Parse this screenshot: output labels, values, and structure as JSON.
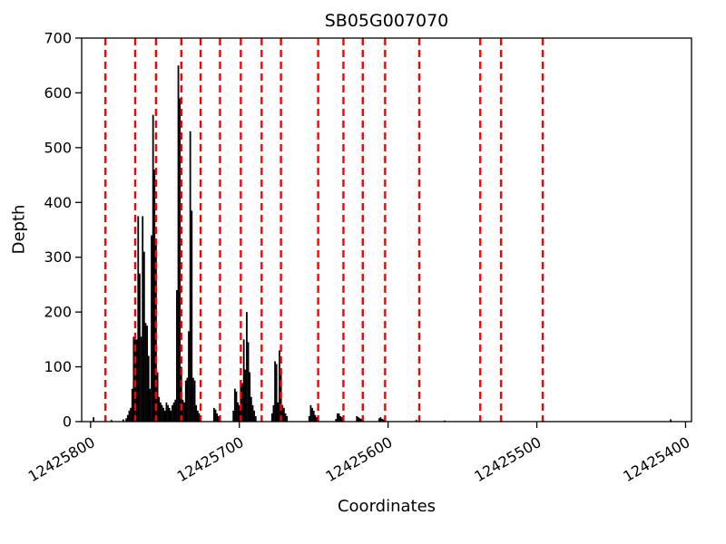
{
  "chart_data": {
    "type": "bar",
    "title": "SB05G007070",
    "xlabel": "Coordinates",
    "ylabel": "Depth",
    "ylim": [
      0,
      700
    ],
    "xlim": [
      12425806,
      12425396
    ],
    "x_axis_reversed": true,
    "grid": false,
    "y_ticks": [
      0,
      100,
      200,
      300,
      400,
      500,
      600,
      700
    ],
    "x_ticks": [
      12425800,
      12425700,
      12425600,
      12425500,
      12425400
    ],
    "x_tick_labels": [
      "12425800",
      "12425700",
      "12425600",
      "12425500",
      "12425400"
    ],
    "bar_color": "#000000",
    "vline_color": "#ff0000",
    "vline_style": "dashed",
    "vlines": [
      12425790,
      12425770,
      12425756,
      12425739,
      12425726,
      12425713,
      12425699,
      12425685,
      12425672,
      12425647,
      12425630,
      12425617,
      12425602,
      12425579,
      12425538,
      12425524,
      12425496
    ],
    "bars": [
      [
        12425798,
        8
      ],
      [
        12425786,
        3
      ],
      [
        12425778,
        4
      ],
      [
        12425776,
        6
      ],
      [
        12425775,
        12
      ],
      [
        12425774,
        20
      ],
      [
        12425773,
        25
      ],
      [
        12425772,
        60
      ],
      [
        12425771,
        155
      ],
      [
        12425770,
        160
      ],
      [
        12425769,
        150
      ],
      [
        12425768,
        375
      ],
      [
        12425767,
        270
      ],
      [
        12425766,
        155
      ],
      [
        12425765,
        375
      ],
      [
        12425764,
        310
      ],
      [
        12425763,
        180
      ],
      [
        12425762,
        175
      ],
      [
        12425761,
        120
      ],
      [
        12425760,
        60
      ],
      [
        12425759,
        340
      ],
      [
        12425758,
        560
      ],
      [
        12425757,
        460
      ],
      [
        12425756,
        330
      ],
      [
        12425755,
        90
      ],
      [
        12425754,
        45
      ],
      [
        12425753,
        35
      ],
      [
        12425752,
        30
      ],
      [
        12425751,
        25
      ],
      [
        12425750,
        20
      ],
      [
        12425749,
        35
      ],
      [
        12425748,
        30
      ],
      [
        12425747,
        25
      ],
      [
        12425746,
        20
      ],
      [
        12425745,
        30
      ],
      [
        12425744,
        35
      ],
      [
        12425743,
        40
      ],
      [
        12425742,
        240
      ],
      [
        12425741,
        650
      ],
      [
        12425740,
        590
      ],
      [
        12425739,
        100
      ],
      [
        12425738,
        40
      ],
      [
        12425737,
        35
      ],
      [
        12425736,
        75
      ],
      [
        12425735,
        80
      ],
      [
        12425734,
        165
      ],
      [
        12425733,
        530
      ],
      [
        12425732,
        385
      ],
      [
        12425731,
        80
      ],
      [
        12425730,
        75
      ],
      [
        12425729,
        30
      ],
      [
        12425728,
        20
      ],
      [
        12425727,
        15
      ],
      [
        12425726,
        10
      ],
      [
        12425717,
        25
      ],
      [
        12425716,
        22
      ],
      [
        12425715,
        15
      ],
      [
        12425714,
        10
      ],
      [
        12425713,
        8
      ],
      [
        12425704,
        20
      ],
      [
        12425703,
        60
      ],
      [
        12425702,
        55
      ],
      [
        12425701,
        35
      ],
      [
        12425700,
        30
      ],
      [
        12425699,
        75
      ],
      [
        12425698,
        70
      ],
      [
        12425697,
        150
      ],
      [
        12425696,
        95
      ],
      [
        12425695,
        200
      ],
      [
        12425694,
        145
      ],
      [
        12425693,
        90
      ],
      [
        12425692,
        45
      ],
      [
        12425691,
        30
      ],
      [
        12425690,
        20
      ],
      [
        12425689,
        10
      ],
      [
        12425678,
        15
      ],
      [
        12425677,
        30
      ],
      [
        12425676,
        110
      ],
      [
        12425675,
        105
      ],
      [
        12425674,
        35
      ],
      [
        12425673,
        130
      ],
      [
        12425672,
        95
      ],
      [
        12425671,
        30
      ],
      [
        12425670,
        25
      ],
      [
        12425669,
        15
      ],
      [
        12425668,
        10
      ],
      [
        12425653,
        10
      ],
      [
        12425652,
        30
      ],
      [
        12425651,
        25
      ],
      [
        12425650,
        20
      ],
      [
        12425649,
        12
      ],
      [
        12425648,
        8
      ],
      [
        12425635,
        5
      ],
      [
        12425634,
        15
      ],
      [
        12425633,
        15
      ],
      [
        12425632,
        10
      ],
      [
        12425631,
        8
      ],
      [
        12425621,
        10
      ],
      [
        12425620,
        8
      ],
      [
        12425619,
        6
      ],
      [
        12425618,
        5
      ],
      [
        12425606,
        6
      ],
      [
        12425605,
        8
      ],
      [
        12425604,
        5
      ],
      [
        12425603,
        4
      ],
      [
        12425581,
        3
      ],
      [
        12425562,
        2
      ],
      [
        12425410,
        4
      ]
    ]
  }
}
